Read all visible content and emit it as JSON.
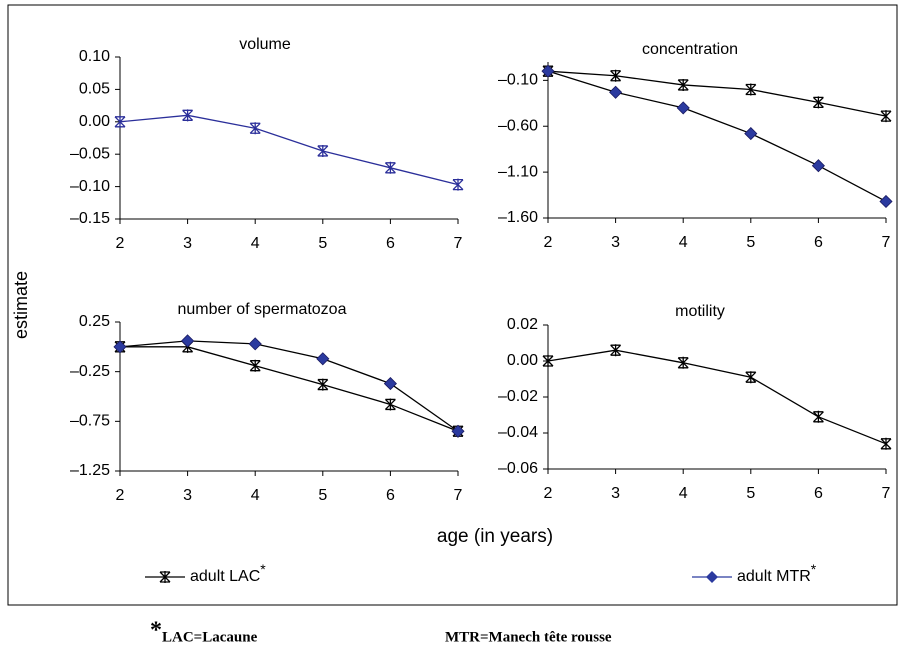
{
  "chart_data": [
    {
      "type": "line",
      "title": "volume",
      "x": [
        2,
        3,
        4,
        5,
        6,
        7
      ],
      "xlim": [
        2,
        7
      ],
      "xticks": [
        2,
        3,
        4,
        5,
        6,
        7
      ],
      "ylim": [
        -0.15,
        0.1
      ],
      "yticks": [
        {
          "value": -0.15,
          "label": "–0.15"
        },
        {
          "value": -0.1,
          "label": "–0.10"
        },
        {
          "value": -0.05,
          "label": "–0.05"
        },
        {
          "value": 0,
          "label": "0.00"
        },
        {
          "value": 0.05,
          "label": "0.05"
        },
        {
          "value": 0.1,
          "label": "0.10"
        }
      ],
      "series": [
        {
          "color": "#2b2f9a",
          "marker": "asterisk",
          "marker_color": "#2b2f9a",
          "values": [
            0,
            0.01,
            -0.01,
            -0.045,
            -0.071,
            -0.097
          ]
        }
      ]
    },
    {
      "type": "line",
      "title": "concentration",
      "x": [
        2,
        3,
        4,
        5,
        6,
        7
      ],
      "xlim": [
        2,
        7
      ],
      "xticks": [
        2,
        3,
        4,
        5,
        6,
        7
      ],
      "ylim": [
        -1.6,
        0.1
      ],
      "yticks": [
        {
          "value": -1.6,
          "label": "–1.60"
        },
        {
          "value": -1.1,
          "label": "–1.10"
        },
        {
          "value": -0.6,
          "label": "–0.60"
        },
        {
          "value": -0.1,
          "label": "–0.10"
        }
      ],
      "series": [
        {
          "color": "#000000",
          "marker": "asterisk",
          "marker_color": "#000000",
          "values": [
            0,
            -0.05,
            -0.15,
            -0.2,
            -0.34,
            -0.49
          ]
        },
        {
          "color": "#000000",
          "marker": "diamond",
          "marker_color": "#2b3a9f",
          "values": [
            0,
            -0.23,
            -0.4,
            -0.68,
            -1.03,
            -1.42
          ]
        }
      ]
    },
    {
      "type": "line",
      "title": "number of spermatozoa",
      "x": [
        2,
        3,
        4,
        5,
        6,
        7
      ],
      "xlim": [
        2,
        7
      ],
      "xticks": [
        2,
        3,
        4,
        5,
        6,
        7
      ],
      "ylim": [
        -1.25,
        0.25
      ],
      "yticks": [
        {
          "value": -1.25,
          "label": "–1.25"
        },
        {
          "value": -0.75,
          "label": "–0.75"
        },
        {
          "value": -0.25,
          "label": "–0.25"
        },
        0.25
      ],
      "series": [
        {
          "color": "#000000",
          "marker": "asterisk",
          "marker_color": "#000000",
          "values": [
            0,
            0,
            -0.19,
            -0.38,
            -0.58,
            -0.85
          ]
        },
        {
          "color": "#000000",
          "marker": "diamond",
          "marker_color": "#2b3a9f",
          "values": [
            0,
            0.06,
            0.03,
            -0.12,
            -0.37,
            -0.85
          ]
        }
      ]
    },
    {
      "type": "line",
      "title": "motility",
      "x": [
        2,
        3,
        4,
        5,
        6,
        7
      ],
      "xlim": [
        2,
        7
      ],
      "xticks": [
        2,
        3,
        4,
        5,
        6,
        7
      ],
      "ylim": [
        -0.06,
        0.02
      ],
      "yticks": [
        {
          "value": -0.06,
          "label": "–0.06"
        },
        {
          "value": -0.04,
          "label": "–0.04"
        },
        {
          "value": -0.02,
          "label": "–0.02"
        },
        {
          "value": 0,
          "label": "0.00"
        },
        {
          "value": 0.02,
          "label": "0.02"
        }
      ],
      "series": [
        {
          "color": "#000000",
          "marker": "asterisk",
          "marker_color": "#000000",
          "values": [
            0,
            0.006,
            -0.001,
            -0.009,
            -0.031,
            -0.046
          ]
        }
      ]
    }
  ],
  "axis_labels": {
    "y": "estimate",
    "x": "age (in years)"
  },
  "legend": [
    {
      "name": "adult LAC",
      "sup": "*",
      "marker": "asterisk",
      "color": "#000000",
      "marker_color": "#000000"
    },
    {
      "name": "adult MTR",
      "sup": "*",
      "marker": "diamond",
      "color": "#2b3a9f",
      "marker_color": "#2b3a9f"
    }
  ],
  "footnote": {
    "mark": "*",
    "items": [
      "LAC=Lacaune",
      "MTR=Manech tête rousse"
    ]
  }
}
